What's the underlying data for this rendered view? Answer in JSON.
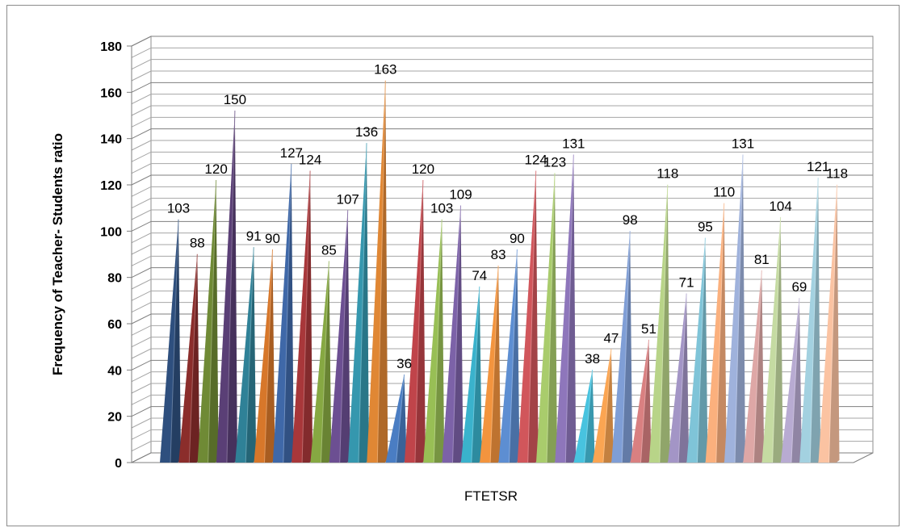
{
  "chart_data": {
    "type": "bar",
    "style": "3d-pyramid",
    "title": "",
    "xlabel": "FTETSR",
    "ylabel": "Frequency of Teacher- Students ratio",
    "ylim": [
      0,
      180
    ],
    "ytick_step": 20,
    "yticks": [
      "0",
      "20",
      "40",
      "60",
      "80",
      "100",
      "120",
      "140",
      "160",
      "180"
    ],
    "gridlines": true,
    "legend": "none",
    "values": [
      103,
      88,
      120,
      150,
      91,
      90,
      127,
      124,
      85,
      107,
      136,
      163,
      36,
      120,
      103,
      109,
      74,
      83,
      90,
      124,
      123,
      131,
      38,
      47,
      98,
      51,
      118,
      71,
      95,
      110,
      131,
      81,
      104,
      69,
      121,
      118
    ],
    "labels": [
      "103",
      "88",
      "120",
      "150",
      "91",
      "90",
      "127",
      "124",
      "85",
      "107",
      "136",
      "163",
      "36",
      "120",
      "103",
      "109",
      "74",
      "83",
      "90",
      "124",
      "123",
      "131",
      "38",
      "47",
      "98",
      "51",
      "118",
      "71",
      "95",
      "110",
      "131",
      "81",
      "104",
      "69",
      "121",
      "118"
    ],
    "colors": [
      "#2e4f7e",
      "#8b2d2b",
      "#6f8a35",
      "#5a3f76",
      "#2f8197",
      "#d7772a",
      "#3f68a8",
      "#a8373a",
      "#86a842",
      "#6c4f92",
      "#3597ae",
      "#e08734",
      "#4a7dc3",
      "#c0444a",
      "#98bf55",
      "#7c62a8",
      "#3ab2cc",
      "#f3943e",
      "#5d8ed2",
      "#d1565b",
      "#a9cc6c",
      "#8e76bb",
      "#48c3df",
      "#fba552",
      "#7f9ed6",
      "#d98081",
      "#b8d488",
      "#a395c6",
      "#7fc4d8",
      "#fbb07d",
      "#9fb2dc",
      "#dea7a6",
      "#c5dba2",
      "#b8abd2",
      "#a3d1e0",
      "#fbc3a2"
    ]
  }
}
